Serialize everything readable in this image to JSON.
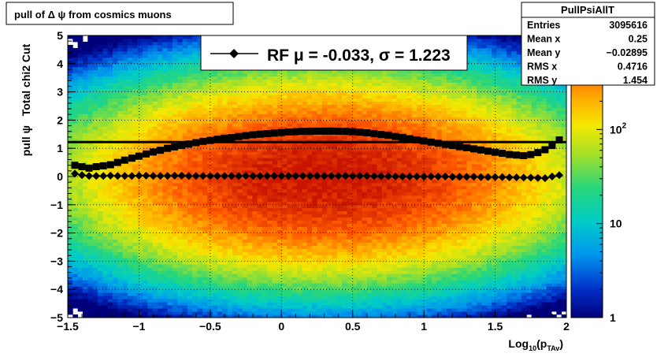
{
  "title": "pull of Δ ψ from cosmics muons",
  "stats": {
    "name": "PullPsiAllT",
    "rows": [
      {
        "label": "Entries",
        "value": "3095616"
      },
      {
        "label": "Mean x",
        "value": "0.25"
      },
      {
        "label": "Mean y",
        "value": "−0.02895"
      },
      {
        "label": "RMS x",
        "value": "0.4716"
      },
      {
        "label": "RMS y",
        "value": "1.454"
      }
    ]
  },
  "legend": {
    "entry": "RF μ = -0.033, σ =   1.223"
  },
  "colorbar": {
    "scale": "log",
    "labels": [
      {
        "text": "1",
        "value": 1
      },
      {
        "text": "10",
        "value": 10
      },
      {
        "text": "10",
        "sup": "2",
        "value": 100
      }
    ]
  },
  "chart_data": {
    "type": "heatmap",
    "title": "pull of Δ ψ from cosmics muons",
    "xlabel": "Log10(pTAv)",
    "ylabel": "pull ψ   Total chi2 Cut",
    "xlabel_parts": {
      "main": "Log",
      "sub1": "10",
      "open": "(p",
      "sub2": "TAv",
      "close": ")"
    },
    "xlim": [
      -1.5,
      2
    ],
    "ylim": [
      -5,
      5
    ],
    "x_ticks": [
      {
        "value": -1.5,
        "label": "−1.5"
      },
      {
        "value": -1,
        "label": "−1"
      },
      {
        "value": -0.5,
        "label": "−0.5"
      },
      {
        "value": 0,
        "label": "0"
      },
      {
        "value": 0.5,
        "label": "0.5"
      },
      {
        "value": 1,
        "label": "1"
      },
      {
        "value": 1.5,
        "label": "1.5"
      },
      {
        "value": 2,
        "label": "2"
      }
    ],
    "y_ticks": [
      {
        "value": 5,
        "label": "5"
      },
      {
        "value": 4,
        "label": "4"
      },
      {
        "value": 3,
        "label": "3"
      },
      {
        "value": 2,
        "label": "2"
      },
      {
        "value": 1,
        "label": "1"
      },
      {
        "value": 0,
        "label": "0"
      },
      {
        "value": -1,
        "label": "−1"
      },
      {
        "value": -2,
        "label": "−2"
      },
      {
        "value": -3,
        "label": "−3"
      },
      {
        "value": -4,
        "label": "−4"
      },
      {
        "value": -5,
        "label": "−5"
      }
    ],
    "grid": true,
    "z_scale": "log",
    "z_range": [
      1,
      1000
    ],
    "density_model": {
      "x_center": 0.3,
      "x_width": 0.75,
      "y_width": 1.5,
      "peak": 1000
    },
    "reference_line": {
      "y": 1.223
    },
    "series": [
      {
        "name": "sigma",
        "marker": "square",
        "x": [
          -1.45,
          -1.4,
          -1.35,
          -1.3,
          -1.25,
          -1.2,
          -1.15,
          -1.1,
          -1.05,
          -1.0,
          -0.95,
          -0.9,
          -0.85,
          -0.8,
          -0.75,
          -0.7,
          -0.65,
          -0.6,
          -0.55,
          -0.5,
          -0.45,
          -0.4,
          -0.35,
          -0.3,
          -0.25,
          -0.2,
          -0.15,
          -0.1,
          -0.05,
          0.0,
          0.05,
          0.1,
          0.15,
          0.2,
          0.25,
          0.3,
          0.35,
          0.4,
          0.45,
          0.5,
          0.55,
          0.6,
          0.65,
          0.7,
          0.75,
          0.8,
          0.85,
          0.9,
          0.95,
          1.0,
          1.05,
          1.1,
          1.15,
          1.2,
          1.25,
          1.3,
          1.35,
          1.4,
          1.45,
          1.5,
          1.55,
          1.6,
          1.65,
          1.7,
          1.75,
          1.8,
          1.85,
          1.9,
          1.95
        ],
        "y": [
          0.4,
          0.35,
          0.3,
          0.35,
          0.38,
          0.42,
          0.5,
          0.58,
          0.65,
          0.72,
          0.8,
          0.87,
          0.93,
          1.0,
          1.05,
          1.1,
          1.15,
          1.2,
          1.25,
          1.28,
          1.32,
          1.36,
          1.38,
          1.42,
          1.45,
          1.48,
          1.5,
          1.52,
          1.54,
          1.56,
          1.58,
          1.59,
          1.6,
          1.6,
          1.61,
          1.61,
          1.61,
          1.6,
          1.6,
          1.59,
          1.57,
          1.55,
          1.52,
          1.49,
          1.46,
          1.42,
          1.38,
          1.34,
          1.3,
          1.26,
          1.22,
          1.18,
          1.14,
          1.1,
          1.06,
          1.02,
          0.98,
          0.94,
          0.9,
          0.86,
          0.82,
          0.78,
          0.76,
          0.74,
          0.78,
          0.85,
          0.95,
          1.1,
          1.3
        ]
      },
      {
        "name": "mean",
        "marker": "diamond",
        "x": [
          -1.45,
          -1.4,
          -1.35,
          -1.3,
          -1.25,
          -1.2,
          -1.15,
          -1.1,
          -1.05,
          -1.0,
          -0.95,
          -0.9,
          -0.85,
          -0.8,
          -0.75,
          -0.7,
          -0.65,
          -0.6,
          -0.55,
          -0.5,
          -0.45,
          -0.4,
          -0.35,
          -0.3,
          -0.25,
          -0.2,
          -0.15,
          -0.1,
          -0.05,
          0.0,
          0.05,
          0.1,
          0.15,
          0.2,
          0.25,
          0.3,
          0.35,
          0.4,
          0.45,
          0.5,
          0.55,
          0.6,
          0.65,
          0.7,
          0.75,
          0.8,
          0.85,
          0.9,
          0.95,
          1.0,
          1.05,
          1.1,
          1.15,
          1.2,
          1.25,
          1.3,
          1.35,
          1.4,
          1.45,
          1.5,
          1.55,
          1.6,
          1.65,
          1.7,
          1.75,
          1.8,
          1.85,
          1.9,
          1.95
        ],
        "y": [
          0.1,
          0.05,
          0.02,
          0.02,
          0.02,
          0.03,
          0.02,
          0.02,
          0.02,
          0.03,
          0.03,
          0.02,
          0.02,
          0.02,
          0.03,
          0.03,
          0.02,
          0.02,
          0.02,
          0.02,
          0.02,
          0.02,
          0.02,
          0.02,
          0.02,
          0.02,
          0.02,
          0.02,
          0.02,
          0.02,
          0.02,
          0.02,
          0.02,
          0.02,
          0.02,
          0.02,
          0.02,
          0.02,
          0.02,
          0.02,
          0.02,
          0.02,
          0.01,
          0.01,
          0.01,
          0.0,
          0.0,
          0.0,
          0.0,
          0.0,
          0.0,
          0.0,
          0.0,
          -0.01,
          -0.01,
          -0.01,
          -0.01,
          -0.02,
          -0.02,
          -0.02,
          -0.02,
          -0.03,
          -0.03,
          -0.04,
          -0.04,
          -0.05,
          -0.06,
          0.0,
          0.05
        ]
      }
    ]
  }
}
